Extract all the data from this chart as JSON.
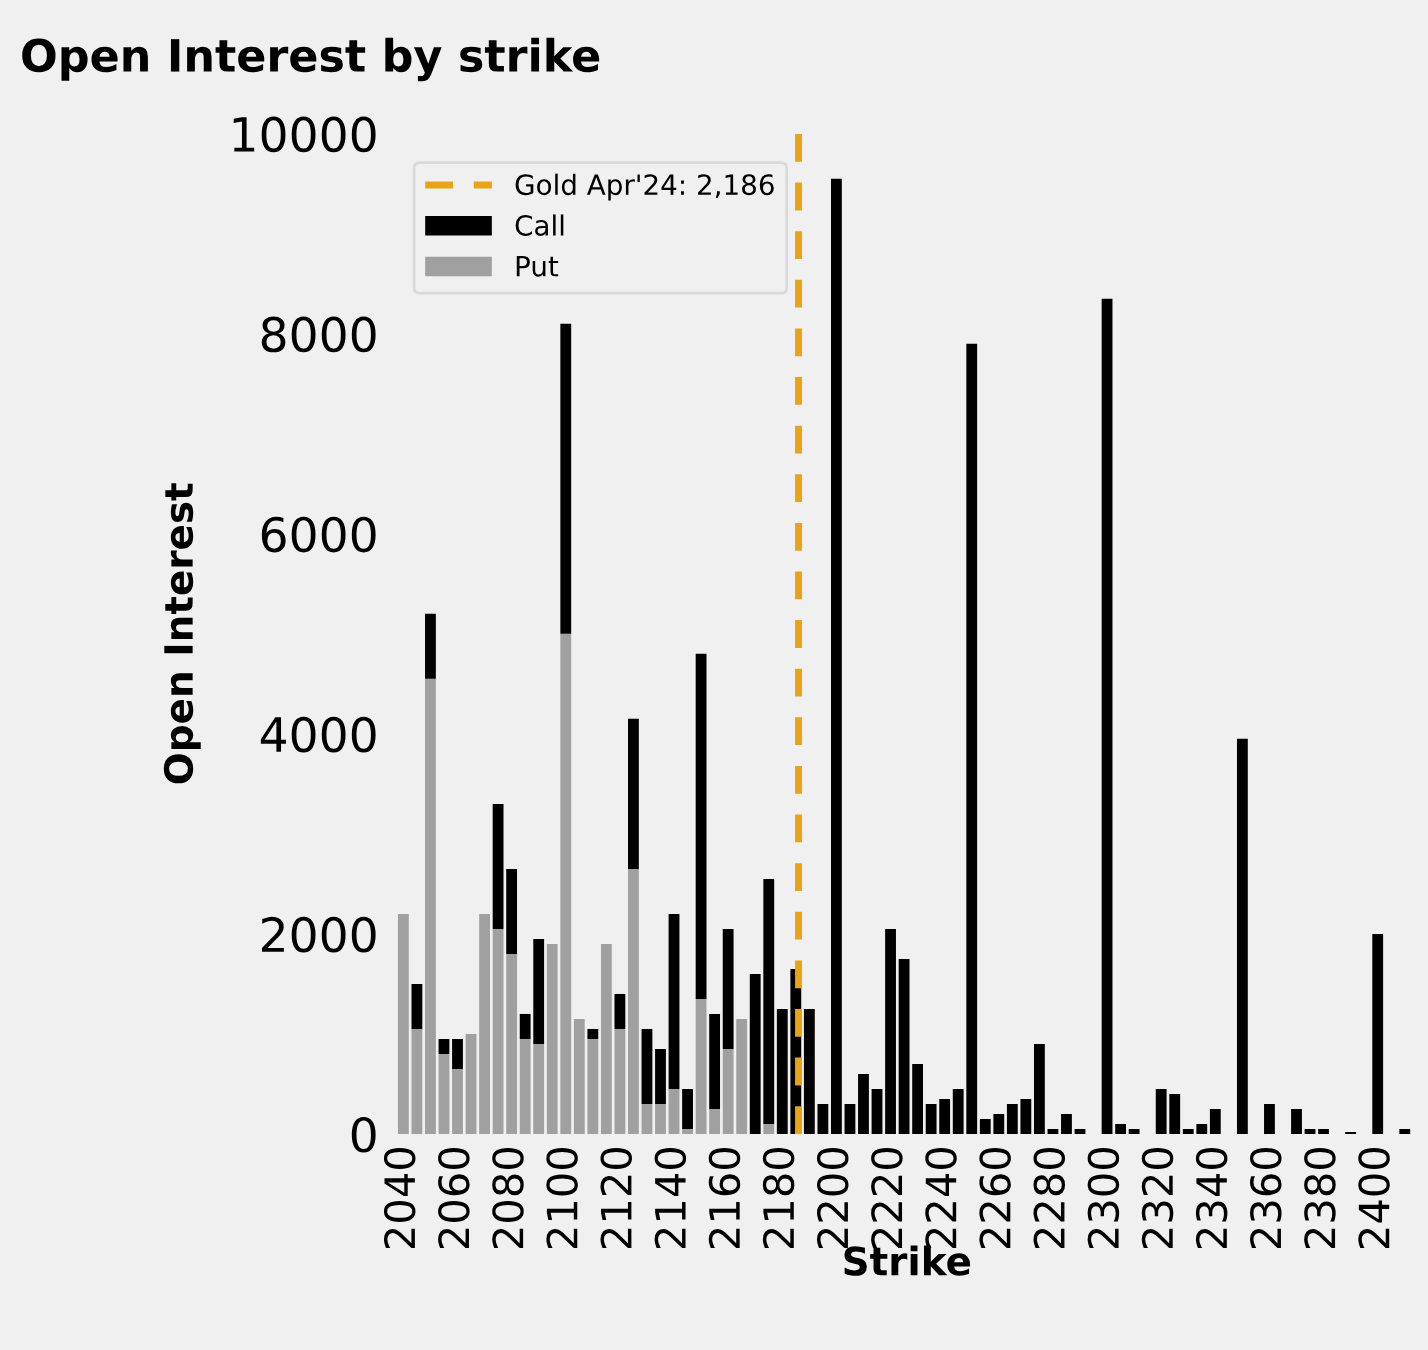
{
  "chart_data": {
    "type": "bar",
    "title": "Open Interest by strike",
    "xlabel": "Strike",
    "ylabel": "Open Interest",
    "stacked": true,
    "x": [
      2040,
      2045,
      2050,
      2055,
      2060,
      2065,
      2070,
      2075,
      2080,
      2085,
      2090,
      2095,
      2100,
      2105,
      2110,
      2115,
      2120,
      2125,
      2130,
      2135,
      2140,
      2145,
      2150,
      2155,
      2160,
      2165,
      2170,
      2175,
      2180,
      2185,
      2190,
      2195,
      2200,
      2205,
      2210,
      2215,
      2220,
      2225,
      2230,
      2235,
      2240,
      2245,
      2250,
      2255,
      2260,
      2265,
      2270,
      2275,
      2280,
      2285,
      2290,
      2295,
      2300,
      2305,
      2310,
      2315,
      2320,
      2325,
      2330,
      2335,
      2340,
      2345,
      2350,
      2355,
      2360,
      2365,
      2370,
      2375,
      2380,
      2385,
      2390,
      2395,
      2400,
      2405,
      2410
    ],
    "series": [
      {
        "name": "Put",
        "color": "#a0a0a0",
        "values": [
          2200,
          1050,
          4550,
          800,
          650,
          1000,
          2200,
          2050,
          1800,
          950,
          900,
          1900,
          5000,
          1150,
          950,
          1900,
          1050,
          2650,
          300,
          300,
          450,
          50,
          1350,
          250,
          850,
          1150,
          null,
          100,
          0,
          0,
          0,
          0,
          0,
          0,
          0,
          0,
          0,
          0,
          0,
          0,
          0,
          0,
          0,
          0,
          0,
          0,
          0,
          0,
          0,
          0,
          0,
          0,
          0,
          0,
          0,
          0,
          0,
          0,
          0,
          0,
          0,
          0,
          0,
          0,
          0,
          0,
          0,
          0,
          0,
          0,
          0,
          0,
          0,
          0,
          0
        ]
      },
      {
        "name": "Call",
        "color": "#000000",
        "values": [
          0,
          450,
          650,
          150,
          300,
          0,
          0,
          1250,
          850,
          250,
          1050,
          0,
          3100,
          0,
          100,
          0,
          350,
          1500,
          750,
          550,
          1750,
          400,
          3450,
          950,
          1200,
          0,
          1600,
          2450,
          1250,
          1650,
          1250,
          300,
          9550,
          300,
          600,
          450,
          2050,
          1750,
          700,
          300,
          350,
          450,
          7900,
          150,
          200,
          300,
          350,
          900,
          50,
          200,
          50,
          0,
          8350,
          100,
          50,
          0,
          450,
          400,
          50,
          100,
          250,
          0,
          3950,
          0,
          300,
          0,
          250,
          50,
          50,
          0,
          20,
          0,
          2000,
          0,
          50
        ]
      }
    ],
    "xlim": [
      2035,
      2417
    ],
    "xticks": [
      2040,
      2060,
      2080,
      2100,
      2120,
      2140,
      2160,
      2180,
      2200,
      2220,
      2240,
      2260,
      2280,
      2300,
      2320,
      2340,
      2360,
      2380,
      2400
    ],
    "ylim": [
      0,
      10000
    ],
    "yticks": [
      0,
      2000,
      4000,
      6000,
      8000,
      10000
    ],
    "ref_lines": [
      {
        "axis": "x",
        "value": 2186,
        "label": "Gold Apr'24: 2,186",
        "color": "#e8a317",
        "line_style": "dashed"
      }
    ],
    "legend": "top left",
    "grid": false
  }
}
